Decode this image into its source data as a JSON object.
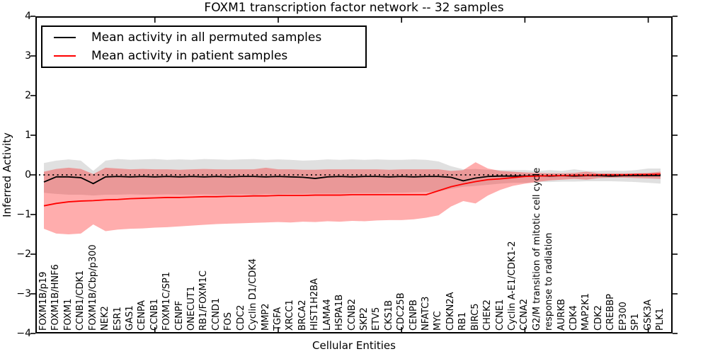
{
  "chart_data": {
    "type": "line",
    "title": "FOXM1 transcription factor network -- 32 samples",
    "xlabel": "Cellular Entities",
    "ylabel": "Inferred Activity",
    "ylim": [
      -4,
      4
    ],
    "y_ticks": [
      4,
      3,
      2,
      1,
      0,
      -1,
      -2,
      -3,
      -4
    ],
    "y_tick_labels": [
      "4",
      "3",
      "2",
      "1",
      "0",
      "−1",
      "−2",
      "−3",
      "−4"
    ],
    "x_major_ticks": [
      10,
      20,
      30,
      40,
      50
    ],
    "grid": false,
    "legend_position": "upper left",
    "zero_line": {
      "y": 0,
      "style": "dotted",
      "color": "#000000"
    },
    "categories": [
      "FOXM1B/p19",
      "FOXM1B/HNF6",
      "FOXM1",
      "CCNB1/CDK1",
      "FOXM1B/Cbp/p300",
      "NEK2",
      "ESR1",
      "GAS1",
      "CENPA",
      "CCNB1",
      "FOXM1C/SP1",
      "CENPF",
      "ONECUT1",
      "RB1/FOXM1C",
      "CCND1",
      "FOS",
      "CDC2",
      "Cyclin D1/CDK4",
      "MMP2",
      "TGFA",
      "XRCC1",
      "BRCA2",
      "HIST1H2BA",
      "LAMA4",
      "HSPA1B",
      "CCNB2",
      "SKP2",
      "ETV5",
      "CKS1B",
      "CDC25B",
      "CENPB",
      "NFATC3",
      "MYC",
      "CDKN2A",
      "RB1",
      "BIRC5",
      "CHEK2",
      "CCNE1",
      "Cyclin A-E1/CDK1-2",
      "CCNA2",
      "G2/M transition of mitotic cell cycle",
      "response to radiation",
      "AURKB",
      "CDK4",
      "MAP2K1",
      "CDK2",
      "CREBBP",
      "EP300",
      "SP1",
      "GSK3A",
      "PLK1"
    ],
    "series": [
      {
        "name": "Mean activity in all permuted samples",
        "color": "#000000",
        "band_color": "#000000",
        "band_opacity": 0.12,
        "values": [
          -0.18,
          -0.05,
          -0.05,
          -0.07,
          -0.22,
          -0.05,
          -0.04,
          -0.05,
          -0.04,
          -0.05,
          -0.04,
          -0.05,
          -0.04,
          -0.05,
          -0.04,
          -0.05,
          -0.04,
          -0.04,
          -0.05,
          -0.04,
          -0.05,
          -0.06,
          -0.09,
          -0.05,
          -0.04,
          -0.05,
          -0.04,
          -0.04,
          -0.05,
          -0.04,
          -0.05,
          -0.04,
          -0.04,
          -0.06,
          -0.15,
          -0.08,
          -0.04,
          -0.03,
          -0.03,
          -0.03,
          -0.02,
          -0.03,
          -0.02,
          -0.03,
          -0.02,
          -0.02,
          -0.03,
          -0.02,
          -0.02,
          -0.02,
          -0.02
        ],
        "band_upper": [
          0.3,
          0.36,
          0.39,
          0.36,
          0.1,
          0.36,
          0.4,
          0.38,
          0.39,
          0.4,
          0.38,
          0.39,
          0.38,
          0.4,
          0.39,
          0.38,
          0.39,
          0.4,
          0.38,
          0.39,
          0.38,
          0.36,
          0.37,
          0.39,
          0.38,
          0.39,
          0.38,
          0.39,
          0.38,
          0.38,
          0.39,
          0.38,
          0.34,
          0.22,
          0.14,
          0.15,
          0.13,
          0.12,
          0.12,
          0.12,
          0.1,
          0.12,
          0.1,
          0.14,
          0.1,
          0.1,
          0.11,
          0.1,
          0.12,
          0.16,
          0.16
        ],
        "band_lower": [
          -0.45,
          -0.48,
          -0.5,
          -0.5,
          -0.52,
          -0.5,
          -0.5,
          -0.49,
          -0.5,
          -0.5,
          -0.49,
          -0.5,
          -0.5,
          -0.49,
          -0.5,
          -0.5,
          -0.49,
          -0.5,
          -0.48,
          -0.49,
          -0.48,
          -0.48,
          -0.47,
          -0.47,
          -0.47,
          -0.46,
          -0.46,
          -0.46,
          -0.45,
          -0.45,
          -0.44,
          -0.43,
          -0.42,
          -0.35,
          -0.3,
          -0.28,
          -0.25,
          -0.22,
          -0.2,
          -0.2,
          -0.18,
          -0.18,
          -0.17,
          -0.17,
          -0.16,
          -0.16,
          -0.16,
          -0.17,
          -0.18,
          -0.2,
          -0.22
        ]
      },
      {
        "name": "Mean activity in patient samples",
        "color": "#ff0000",
        "band_color": "#ff0000",
        "band_opacity": 0.32,
        "values": [
          -0.78,
          -0.72,
          -0.68,
          -0.66,
          -0.65,
          -0.63,
          -0.62,
          -0.6,
          -0.59,
          -0.58,
          -0.57,
          -0.57,
          -0.56,
          -0.55,
          -0.55,
          -0.54,
          -0.54,
          -0.53,
          -0.53,
          -0.52,
          -0.52,
          -0.52,
          -0.51,
          -0.51,
          -0.51,
          -0.5,
          -0.5,
          -0.5,
          -0.5,
          -0.5,
          -0.5,
          -0.5,
          -0.4,
          -0.3,
          -0.23,
          -0.17,
          -0.12,
          -0.1,
          -0.07,
          -0.04,
          -0.03,
          -0.02,
          -0.02,
          -0.01,
          -0.01,
          0.0,
          0.0,
          0.0,
          0.01,
          0.01,
          0.02
        ],
        "band_upper": [
          0.08,
          0.15,
          0.18,
          0.15,
          0.02,
          0.18,
          0.16,
          0.14,
          0.15,
          0.14,
          0.14,
          0.13,
          0.14,
          0.15,
          0.14,
          0.14,
          0.14,
          0.14,
          0.18,
          0.14,
          0.14,
          0.13,
          0.13,
          0.14,
          0.14,
          0.14,
          0.14,
          0.14,
          0.13,
          0.14,
          0.14,
          0.14,
          0.14,
          0.1,
          0.12,
          0.32,
          0.16,
          0.1,
          0.08,
          0.06,
          0.05,
          0.04,
          0.04,
          0.05,
          0.08,
          0.04,
          0.04,
          0.04,
          0.04,
          0.05,
          0.08
        ],
        "band_lower": [
          -1.36,
          -1.48,
          -1.5,
          -1.48,
          -1.25,
          -1.42,
          -1.38,
          -1.36,
          -1.35,
          -1.33,
          -1.32,
          -1.3,
          -1.28,
          -1.26,
          -1.24,
          -1.23,
          -1.22,
          -1.21,
          -1.2,
          -1.19,
          -1.2,
          -1.18,
          -1.19,
          -1.17,
          -1.18,
          -1.16,
          -1.17,
          -1.15,
          -1.14,
          -1.14,
          -1.12,
          -1.08,
          -1.02,
          -0.8,
          -0.66,
          -0.72,
          -0.52,
          -0.38,
          -0.28,
          -0.22,
          -0.18,
          -0.14,
          -0.12,
          -0.1,
          -0.12,
          -0.08,
          -0.07,
          -0.07,
          -0.08,
          -0.09,
          -0.1
        ]
      }
    ]
  },
  "legend": {
    "items": [
      {
        "label": "Mean activity in all permuted samples",
        "color": "#000000"
      },
      {
        "label": "Mean activity in patient samples",
        "color": "#ff0000"
      }
    ]
  },
  "frame": {
    "color": "#000000"
  }
}
